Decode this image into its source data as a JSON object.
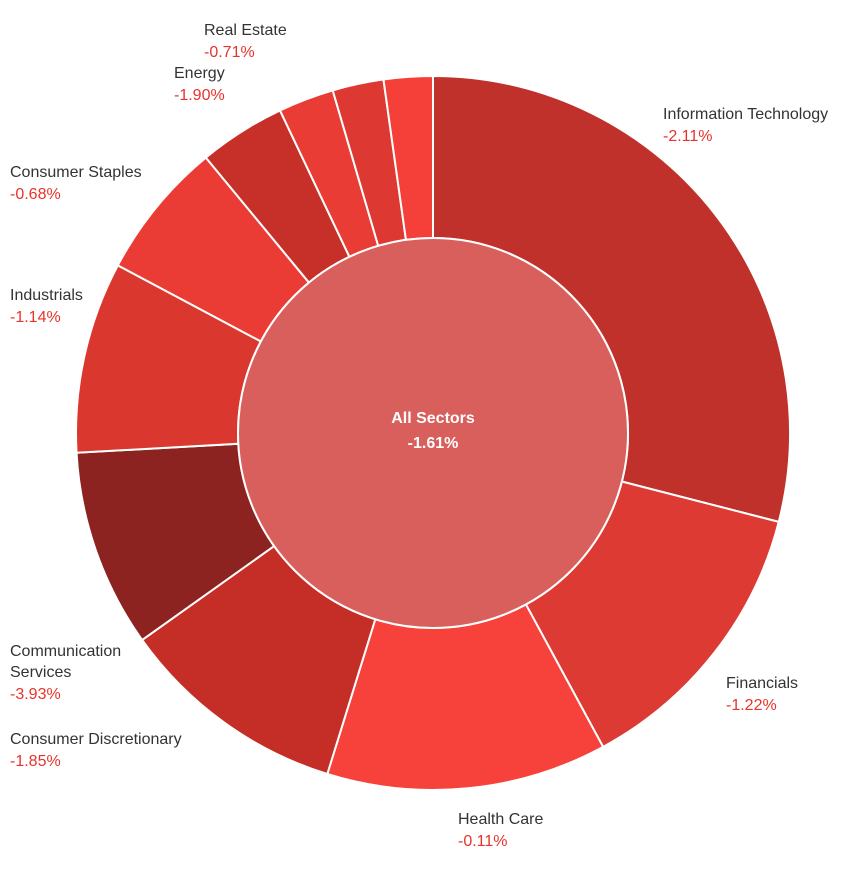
{
  "chart_data": {
    "type": "sunburst",
    "center": {
      "label": "All Sectors",
      "value": "-1.61%",
      "color": "#d85f5b"
    },
    "label_color": "#e8322a",
    "segments": [
      {
        "name": "Information Technology",
        "change": "-2.11%",
        "weight": 28.8,
        "color": "#c0312b"
      },
      {
        "name": "Financials",
        "change": "-1.22%",
        "weight": 13.0,
        "color": "#dc3a32"
      },
      {
        "name": "Health Care",
        "change": "-0.11%",
        "weight": 12.6,
        "color": "#f7413b"
      },
      {
        "name": "Consumer Discretionary",
        "change": "-1.85%",
        "weight": 10.3,
        "color": "#c52d27"
      },
      {
        "name": "Communication Services",
        "change": "-3.93%",
        "weight": 8.9,
        "color": "#8c2320"
      },
      {
        "name": "Industrials",
        "change": "-1.14%",
        "weight": 8.6,
        "color": "#da382f"
      },
      {
        "name": "Consumer Staples",
        "change": "-0.68%",
        "weight": 6.2,
        "color": "#ea3c35"
      },
      {
        "name": "Energy",
        "change": "-1.90%",
        "weight": 3.9,
        "color": "#c73029"
      },
      {
        "name": "",
        "change": "",
        "weight": 2.5,
        "color": "#e83c35"
      },
      {
        "name": "",
        "change": "",
        "weight": 2.3,
        "color": "#dd3831"
      },
      {
        "name": "Real Estate",
        "change": "-0.71%",
        "weight": 2.2,
        "color": "#f53f39"
      }
    ]
  }
}
